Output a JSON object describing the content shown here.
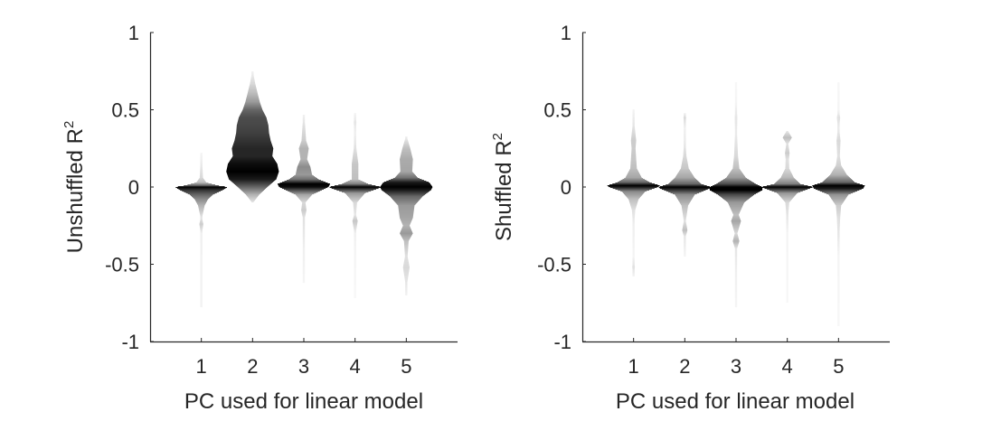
{
  "chart_data": [
    {
      "type": "violin",
      "panel": "left",
      "xlabel": "PC used for linear model",
      "ylabel": "Unshuffled R",
      "ylabel_superscript": "2",
      "ylim": [
        -1,
        1
      ],
      "yticks": [
        -1,
        -0.5,
        0,
        0.5,
        1
      ],
      "ytick_labels": [
        "-1",
        "-0.5",
        "0",
        "0.5",
        "1"
      ],
      "xlim": [
        0,
        6
      ],
      "categories": [
        "1",
        "2",
        "3",
        "4",
        "5"
      ],
      "grid": false,
      "series": [
        {
          "name": "1",
          "profile": [
            [
              -0.78,
              0.01,
              0.05
            ],
            [
              -0.5,
              0.01,
              0.05
            ],
            [
              -0.3,
              0.02,
              0.06
            ],
            [
              -0.24,
              0.06,
              0.2
            ],
            [
              -0.2,
              0.02,
              0.1
            ],
            [
              -0.12,
              0.1,
              0.3
            ],
            [
              -0.08,
              0.2,
              0.45
            ],
            [
              -0.05,
              0.35,
              0.6
            ],
            [
              -0.02,
              0.65,
              0.8
            ],
            [
              0,
              0.8,
              1.0
            ],
            [
              0.01,
              0.5,
              0.6
            ],
            [
              0.03,
              0.15,
              0.25
            ],
            [
              0.06,
              0.05,
              0.15
            ],
            [
              0.15,
              0.03,
              0.08
            ],
            [
              0.22,
              0.01,
              0.04
            ]
          ]
        },
        {
          "name": "2",
          "profile": [
            [
              -0.1,
              0.02,
              0.1
            ],
            [
              -0.05,
              0.2,
              0.3
            ],
            [
              0,
              0.45,
              0.6
            ],
            [
              0.05,
              0.72,
              0.9
            ],
            [
              0.1,
              0.8,
              1.0
            ],
            [
              0.15,
              0.75,
              0.95
            ],
            [
              0.2,
              0.6,
              0.85
            ],
            [
              0.25,
              0.63,
              0.85
            ],
            [
              0.3,
              0.55,
              0.8
            ],
            [
              0.35,
              0.5,
              0.75
            ],
            [
              0.4,
              0.48,
              0.72
            ],
            [
              0.45,
              0.42,
              0.7
            ],
            [
              0.5,
              0.3,
              0.6
            ],
            [
              0.55,
              0.22,
              0.4
            ],
            [
              0.6,
              0.16,
              0.28
            ],
            [
              0.67,
              0.08,
              0.15
            ],
            [
              0.75,
              0.01,
              0.05
            ]
          ]
        },
        {
          "name": "3",
          "profile": [
            [
              -0.62,
              0.01,
              0.04
            ],
            [
              -0.4,
              0.02,
              0.06
            ],
            [
              -0.2,
              0.03,
              0.12
            ],
            [
              -0.15,
              0.08,
              0.2
            ],
            [
              -0.1,
              0.05,
              0.15
            ],
            [
              -0.05,
              0.25,
              0.35
            ],
            [
              -0.02,
              0.55,
              0.7
            ],
            [
              0,
              0.75,
              0.95
            ],
            [
              0.02,
              0.8,
              1.0
            ],
            [
              0.05,
              0.45,
              0.55
            ],
            [
              0.08,
              0.25,
              0.4
            ],
            [
              0.13,
              0.2,
              0.45
            ],
            [
              0.18,
              0.1,
              0.3
            ],
            [
              0.25,
              0.15,
              0.3
            ],
            [
              0.3,
              0.07,
              0.2
            ],
            [
              0.4,
              0.04,
              0.12
            ],
            [
              0.47,
              0.01,
              0.05
            ]
          ]
        },
        {
          "name": "4",
          "profile": [
            [
              -0.72,
              0.01,
              0.03
            ],
            [
              -0.45,
              0.01,
              0.04
            ],
            [
              -0.3,
              0.02,
              0.06
            ],
            [
              -0.22,
              0.08,
              0.22
            ],
            [
              -0.18,
              0.03,
              0.1
            ],
            [
              -0.1,
              0.06,
              0.15
            ],
            [
              -0.04,
              0.3,
              0.4
            ],
            [
              -0.01,
              0.7,
              0.85
            ],
            [
              0,
              0.8,
              1.0
            ],
            [
              0.02,
              0.4,
              0.5
            ],
            [
              0.05,
              0.1,
              0.25
            ],
            [
              0.15,
              0.1,
              0.22
            ],
            [
              0.25,
              0.04,
              0.12
            ],
            [
              0.35,
              0.02,
              0.06
            ],
            [
              0.42,
              0.04,
              0.1
            ],
            [
              0.48,
              0.01,
              0.04
            ]
          ]
        },
        {
          "name": "5",
          "profile": [
            [
              -0.7,
              0.01,
              0.05
            ],
            [
              -0.62,
              0.03,
              0.1
            ],
            [
              -0.52,
              0.1,
              0.15
            ],
            [
              -0.45,
              0.04,
              0.12
            ],
            [
              -0.35,
              0.07,
              0.25
            ],
            [
              -0.3,
              0.2,
              0.4
            ],
            [
              -0.25,
              0.1,
              0.3
            ],
            [
              -0.2,
              0.2,
              0.35
            ],
            [
              -0.12,
              0.25,
              0.4
            ],
            [
              -0.06,
              0.5,
              0.6
            ],
            [
              -0.02,
              0.75,
              0.9
            ],
            [
              0,
              0.8,
              1.0
            ],
            [
              0.03,
              0.7,
              0.9
            ],
            [
              0.06,
              0.35,
              0.55
            ],
            [
              0.1,
              0.18,
              0.35
            ],
            [
              0.18,
              0.2,
              0.33
            ],
            [
              0.25,
              0.12,
              0.25
            ],
            [
              0.33,
              0.01,
              0.05
            ]
          ]
        }
      ]
    },
    {
      "type": "violin",
      "panel": "right",
      "xlabel": "PC used for linear model",
      "ylabel": "Shuffled R",
      "ylabel_superscript": "2",
      "ylim": [
        -1,
        1
      ],
      "yticks": [
        -1,
        -0.5,
        0,
        0.5,
        1
      ],
      "ytick_labels": [
        "-1",
        "-0.5",
        "0",
        "0.5",
        "1"
      ],
      "xlim": [
        0,
        6
      ],
      "categories": [
        "1",
        "2",
        "3",
        "4",
        "5"
      ],
      "grid": false,
      "series": [
        {
          "name": "1",
          "profile": [
            [
              -0.58,
              0.01,
              0.04
            ],
            [
              -0.52,
              0.04,
              0.12
            ],
            [
              -0.45,
              0.01,
              0.04
            ],
            [
              -0.25,
              0.02,
              0.06
            ],
            [
              -0.15,
              0.05,
              0.12
            ],
            [
              -0.08,
              0.15,
              0.25
            ],
            [
              -0.03,
              0.35,
              0.45
            ],
            [
              0,
              0.75,
              0.9
            ],
            [
              0.01,
              0.8,
              1.0
            ],
            [
              0.03,
              0.5,
              0.6
            ],
            [
              0.06,
              0.25,
              0.35
            ],
            [
              0.12,
              0.1,
              0.25
            ],
            [
              0.18,
              0.08,
              0.22
            ],
            [
              0.25,
              0.06,
              0.2
            ],
            [
              0.3,
              0.08,
              0.2
            ],
            [
              0.4,
              0.03,
              0.1
            ],
            [
              0.5,
              0.01,
              0.04
            ]
          ]
        },
        {
          "name": "2",
          "profile": [
            [
              -0.45,
              0.01,
              0.04
            ],
            [
              -0.32,
              0.03,
              0.1
            ],
            [
              -0.28,
              0.08,
              0.25
            ],
            [
              -0.22,
              0.03,
              0.12
            ],
            [
              -0.12,
              0.1,
              0.25
            ],
            [
              -0.05,
              0.3,
              0.45
            ],
            [
              -0.01,
              0.75,
              0.9
            ],
            [
              0,
              0.8,
              1.0
            ],
            [
              0.02,
              0.5,
              0.6
            ],
            [
              0.06,
              0.3,
              0.35
            ],
            [
              0.12,
              0.12,
              0.22
            ],
            [
              0.2,
              0.05,
              0.15
            ],
            [
              0.3,
              0.02,
              0.08
            ],
            [
              0.38,
              0.01,
              0.06
            ],
            [
              0.45,
              0.04,
              0.15
            ],
            [
              0.48,
              0.01,
              0.04
            ]
          ]
        },
        {
          "name": "3",
          "profile": [
            [
              -0.78,
              0.01,
              0.04
            ],
            [
              -0.55,
              0.02,
              0.06
            ],
            [
              -0.4,
              0.03,
              0.1
            ],
            [
              -0.35,
              0.1,
              0.3
            ],
            [
              -0.3,
              0.04,
              0.15
            ],
            [
              -0.22,
              0.15,
              0.35
            ],
            [
              -0.18,
              0.08,
              0.25
            ],
            [
              -0.1,
              0.25,
              0.4
            ],
            [
              -0.05,
              0.55,
              0.7
            ],
            [
              -0.02,
              0.8,
              1.0
            ],
            [
              0,
              0.8,
              1.0
            ],
            [
              0.02,
              0.6,
              0.7
            ],
            [
              0.06,
              0.3,
              0.4
            ],
            [
              0.12,
              0.1,
              0.25
            ],
            [
              0.2,
              0.06,
              0.15
            ],
            [
              0.35,
              0.03,
              0.08
            ],
            [
              0.45,
              0.04,
              0.1
            ],
            [
              0.55,
              0.01,
              0.04
            ],
            [
              0.68,
              0.01,
              0.03
            ]
          ]
        },
        {
          "name": "4",
          "profile": [
            [
              -0.75,
              0.01,
              0.03
            ],
            [
              -0.3,
              0.01,
              0.04
            ],
            [
              -0.15,
              0.04,
              0.12
            ],
            [
              -0.1,
              0.06,
              0.15
            ],
            [
              -0.04,
              0.3,
              0.4
            ],
            [
              0,
              0.8,
              1.0
            ],
            [
              0.02,
              0.4,
              0.5
            ],
            [
              0.06,
              0.2,
              0.28
            ],
            [
              0.12,
              0.06,
              0.15
            ],
            [
              0.18,
              0.05,
              0.12
            ],
            [
              0.22,
              0.07,
              0.2
            ],
            [
              0.28,
              0.03,
              0.12
            ],
            [
              0.32,
              0.14,
              0.25
            ],
            [
              0.36,
              0.03,
              0.1
            ]
          ]
        },
        {
          "name": "5",
          "profile": [
            [
              -0.9,
              0.01,
              0.03
            ],
            [
              -0.45,
              0.01,
              0.04
            ],
            [
              -0.3,
              0.03,
              0.1
            ],
            [
              -0.2,
              0.05,
              0.12
            ],
            [
              -0.12,
              0.08,
              0.2
            ],
            [
              -0.05,
              0.3,
              0.42
            ],
            [
              -0.01,
              0.75,
              0.9
            ],
            [
              0.01,
              0.8,
              1.0
            ],
            [
              0.03,
              0.5,
              0.6
            ],
            [
              0.08,
              0.25,
              0.3
            ],
            [
              0.14,
              0.08,
              0.18
            ],
            [
              0.2,
              0.04,
              0.12
            ],
            [
              0.3,
              0.06,
              0.15
            ],
            [
              0.38,
              0.02,
              0.08
            ],
            [
              0.45,
              0.05,
              0.12
            ],
            [
              0.5,
              0.01,
              0.04
            ],
            [
              0.68,
              0.01,
              0.03
            ]
          ]
        }
      ]
    }
  ]
}
